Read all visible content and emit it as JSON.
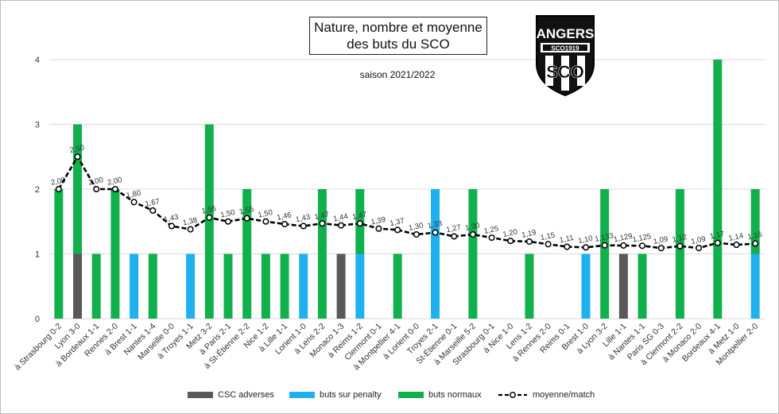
{
  "title_line1": "Nature, nombre et moyenne",
  "title_line2": "des buts du SCO",
  "subtitle": "saison 2021/2022",
  "logo": {
    "text_top": "ANGERS",
    "text_band": "SCO1919",
    "text_bottom": "SCO"
  },
  "legend": {
    "csc": "CSC adverses",
    "penalty": "buts sur penalty",
    "normal": "buts normaux",
    "moyenne": "moyenne/match"
  },
  "colors": {
    "csc": "#595959",
    "penalty": "#1fb0ef",
    "normal": "#11b04c",
    "moyenne": "#000000"
  },
  "chart_data": {
    "type": "bar",
    "stacked": true,
    "ylim": [
      0,
      4
    ],
    "yticks": [
      "0",
      "1",
      "2",
      "3",
      "4"
    ],
    "grid": true,
    "legend_position": "bottom",
    "categories": [
      "à Strasbourg 0-2",
      "Lyon 3-0",
      "à Bordeaux 1-1",
      "Rennes 2-0",
      "à Brest 1-1",
      "Nantes 1-4",
      "Marseille 0-0",
      "à Troyes 1-1",
      "Metz 3-2",
      "à Paris 2-1",
      "à St-Étienne 2-2",
      "Nice 1-2",
      "à Lille 1-1",
      "Lorient 1-0",
      "à Lens 2-2",
      "Monaco 1-3",
      "à Reims 1-2",
      "Clermont 0-1",
      "à Montpellier 4-1",
      "à Lorient 0-0",
      "Troyes 2-1",
      "St-Étienne 0-1",
      "à Marseille 5-2",
      "Strasbourg 0-1",
      "à Nice 1-0",
      "Lens 1-2",
      "à Rennes 2-0",
      "Reims 0-1",
      "Brest 1-0",
      "à Lyon 3-2",
      "Lille 1-1",
      "à Nantes 1-1",
      "Paris SG 0-3",
      "à Clermont 2-2",
      "à Monaco 2-0",
      "Bordeaux 4-1",
      "à Metz 1-0",
      "Montpellier 2-0"
    ],
    "series": [
      {
        "name": "CSC adverses",
        "values": [
          0,
          1,
          0,
          0,
          0,
          0,
          0,
          0,
          0,
          0,
          0,
          0,
          0,
          0,
          0,
          1,
          0,
          0,
          0,
          0,
          0,
          0,
          0,
          0,
          0,
          0,
          0,
          0,
          0,
          0,
          1,
          0,
          0,
          0,
          0,
          0,
          0,
          0
        ]
      },
      {
        "name": "buts sur penalty",
        "values": [
          0,
          0,
          0,
          0,
          1,
          0,
          0,
          1,
          0,
          0,
          0,
          0,
          0,
          1,
          0,
          0,
          1,
          0,
          0,
          0,
          2,
          0,
          0,
          0,
          0,
          0,
          0,
          0,
          1,
          0,
          0,
          0,
          0,
          0,
          0,
          0,
          0,
          1
        ]
      },
      {
        "name": "buts normaux",
        "values": [
          2,
          2,
          1,
          2,
          0,
          1,
          0,
          0,
          3,
          1,
          2,
          1,
          1,
          0,
          2,
          0,
          1,
          0,
          1,
          0,
          0,
          0,
          2,
          0,
          0,
          1,
          0,
          0,
          0,
          2,
          0,
          1,
          0,
          2,
          0,
          4,
          0,
          1
        ]
      }
    ],
    "moyenne": {
      "name": "moyenne/match",
      "values": [
        2.0,
        2.5,
        2.0,
        2.0,
        1.8,
        1.67,
        1.43,
        1.38,
        1.56,
        1.5,
        1.55,
        1.5,
        1.46,
        1.43,
        1.47,
        1.44,
        1.47,
        1.39,
        1.37,
        1.3,
        1.33,
        1.27,
        1.3,
        1.25,
        1.2,
        1.19,
        1.15,
        1.11,
        1.1,
        1.133,
        1.129,
        1.125,
        1.09,
        1.12,
        1.09,
        1.17,
        1.14,
        1.16
      ],
      "labels": [
        "2,00",
        "2,50",
        "2,00",
        "2,00",
        "1,80",
        "1,67",
        "1,43",
        "1,38",
        "1,56",
        "1,50",
        "1,55",
        "1,50",
        "1,46",
        "1,43",
        "1,47",
        "1,44",
        "1,47",
        "1,39",
        "1,37",
        "1,30",
        "1,33",
        "1,27",
        "1,30",
        "1,25",
        "1,20",
        "1,19",
        "1,15",
        "1,11",
        "1,10",
        "1,133",
        "1,129",
        "1,125",
        "1,09",
        "1,12",
        "1,09",
        "1,17",
        "1,14",
        "1,16"
      ]
    }
  }
}
